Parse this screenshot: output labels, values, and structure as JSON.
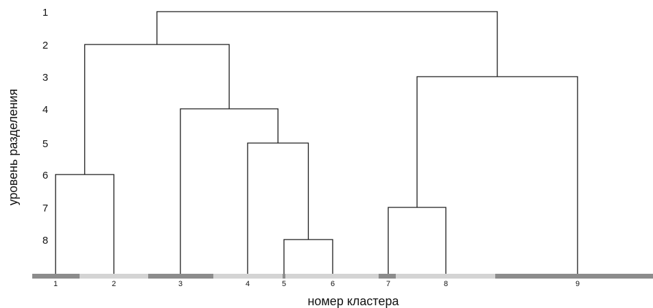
{
  "y_axis_title": "уровень разделения",
  "x_axis_title": "номер кластера",
  "levels": [
    "1",
    "2",
    "3",
    "4",
    "5",
    "6",
    "7",
    "8"
  ],
  "clusters": [
    "1",
    "2",
    "3",
    "4",
    "5",
    "6",
    "7",
    "8",
    "9"
  ],
  "bar_colors": {
    "dark": "#8c8c8c",
    "light": "#d4d4d4"
  },
  "merges": [
    {
      "id": "m8",
      "level": 8,
      "children": [
        "c5",
        "c6"
      ]
    },
    {
      "id": "m6",
      "level": 6,
      "children": [
        "c1",
        "c2"
      ]
    },
    {
      "id": "m7",
      "level": 7,
      "children": [
        "c7",
        "c8"
      ]
    },
    {
      "id": "m5",
      "level": 5,
      "children": [
        "c4",
        "m8"
      ]
    },
    {
      "id": "m4",
      "level": 4,
      "children": [
        "c3",
        "m5"
      ]
    },
    {
      "id": "m3",
      "level": 3,
      "children": [
        "m7",
        "c9"
      ]
    },
    {
      "id": "m2",
      "level": 2,
      "children": [
        "m6",
        "m4"
      ]
    },
    {
      "id": "m1",
      "level": 1,
      "children": [
        "m2",
        "m3"
      ]
    }
  ]
}
